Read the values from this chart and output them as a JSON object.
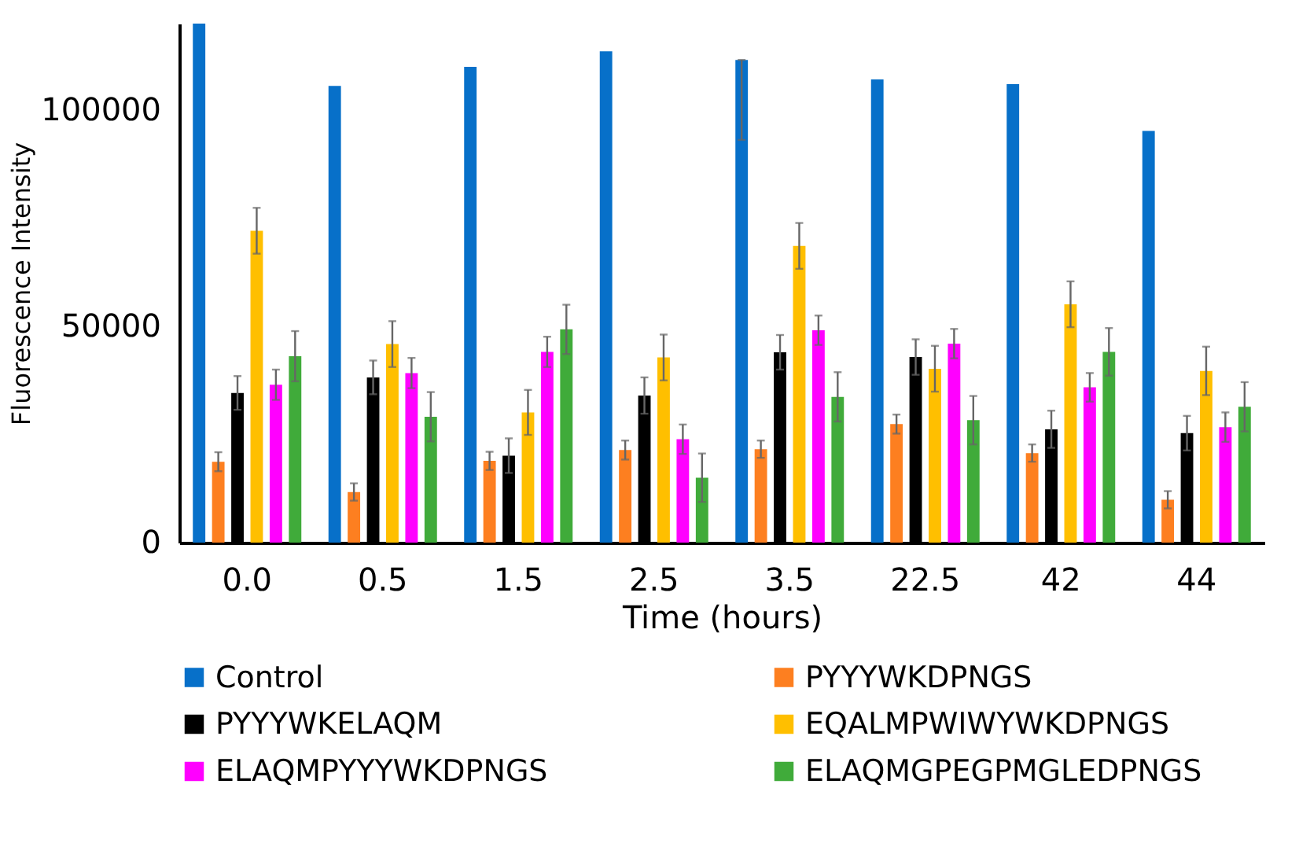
{
  "chart_data": {
    "type": "bar",
    "xlabel": "Time (hours)",
    "ylabel": "Fluorescence Intensity",
    "categories": [
      "0.0",
      "0.5",
      "1.5",
      "2.5",
      "3.5",
      "22.5",
      "42",
      "44"
    ],
    "ylim": [
      0,
      120000
    ],
    "yticks": [
      0,
      50000,
      100000
    ],
    "grid": false,
    "legend": "bottom",
    "series": [
      {
        "name": "Control",
        "color": "#0770c9",
        "values": [
          120000,
          105600,
          110000,
          113600,
          111600,
          107100,
          106000,
          95200
        ],
        "errors": [
          null,
          null,
          null,
          null,
          [
            93100,
            111600
          ],
          null,
          null,
          null
        ]
      },
      {
        "name": "PYYYWKDPNGS",
        "color": "#fd7f20",
        "values": [
          18700,
          11700,
          18900,
          21400,
          21600,
          27400,
          20700,
          9900
        ],
        "errors": [
          2200,
          2000,
          2100,
          2200,
          2000,
          2200,
          2000,
          2000
        ]
      },
      {
        "name": "PYYYWKELAQM",
        "color": "#000000",
        "values": [
          34600,
          38200,
          20100,
          34000,
          44000,
          42900,
          26200,
          25300
        ],
        "errors": [
          3900,
          3900,
          4000,
          4200,
          4000,
          4100,
          4300,
          4000
        ]
      },
      {
        "name": "EQALMPWIWYWKDPNGS",
        "color": "#ffbf00",
        "values": [
          72100,
          45900,
          30100,
          42800,
          68600,
          40200,
          55100,
          39700
        ],
        "errors": [
          5300,
          5300,
          5200,
          5300,
          5300,
          5300,
          5300,
          5600
        ]
      },
      {
        "name": "ELAQMPYYYWKDPNGS",
        "color": "#ff00ff",
        "values": [
          36500,
          39200,
          44100,
          23900,
          49100,
          46000,
          35900,
          26700
        ],
        "errors": [
          3500,
          3500,
          3500,
          3400,
          3400,
          3400,
          3300,
          3400
        ]
      },
      {
        "name": "ELAQMGPEGPMGLEDPNGS",
        "color": "#40ab3a",
        "values": [
          43100,
          29100,
          49300,
          15000,
          33700,
          28300,
          44100,
          31400
        ],
        "errors": [
          5800,
          5700,
          5700,
          5600,
          5700,
          5600,
          5500,
          5700
        ]
      }
    ]
  }
}
